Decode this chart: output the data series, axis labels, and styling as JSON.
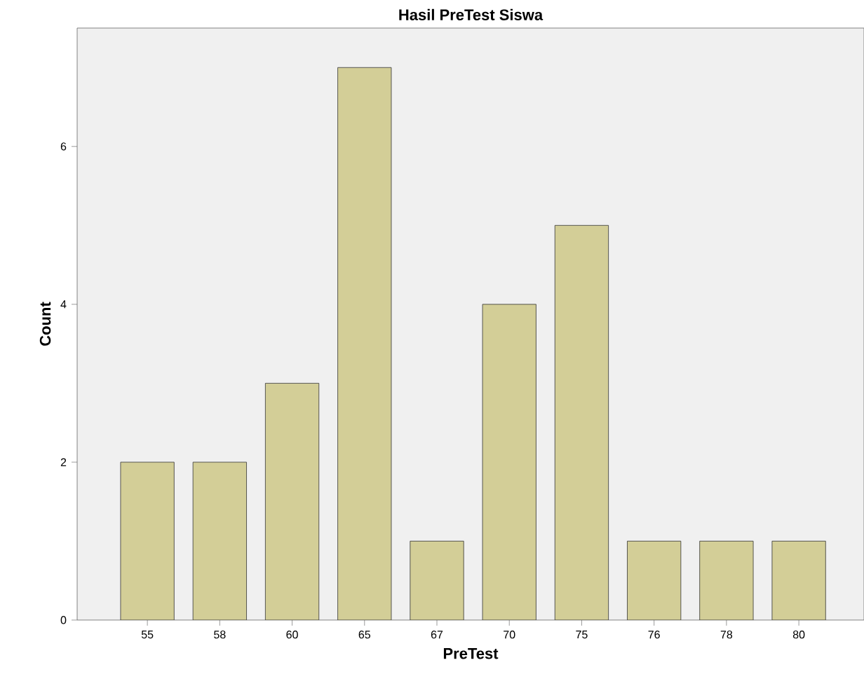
{
  "chart_data": {
    "type": "bar",
    "title": "Hasil PreTest Siswa",
    "xlabel": "PreTest",
    "ylabel": "Count",
    "categories": [
      "55",
      "58",
      "60",
      "65",
      "67",
      "70",
      "75",
      "76",
      "78",
      "80"
    ],
    "values": [
      2,
      2,
      3,
      7,
      1,
      4,
      5,
      1,
      1,
      1
    ],
    "color": "#d3ce97",
    "ylim": [
      0,
      7.5
    ],
    "yticks": [
      0,
      2,
      4,
      6
    ]
  }
}
